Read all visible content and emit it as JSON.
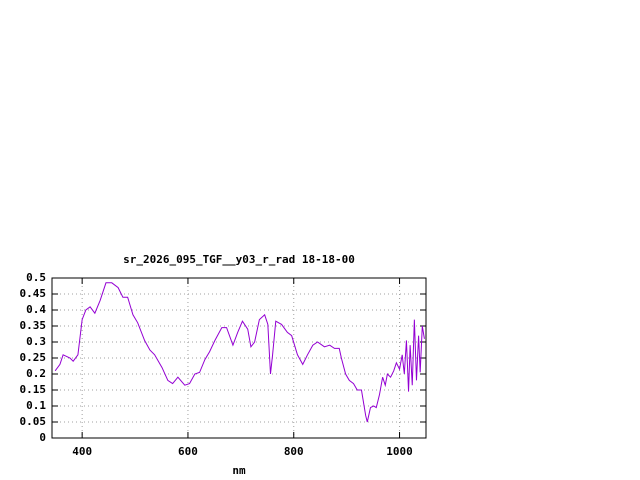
{
  "chart_data": {
    "type": "line",
    "title": "sr_2026_095_TGF__y03_r_rad 18-18-00",
    "xlabel": "nm",
    "x": [
      349,
      358,
      364,
      377,
      383,
      392,
      400,
      407,
      415,
      424,
      434,
      445,
      456,
      468,
      477,
      486,
      496,
      505,
      518,
      528,
      537,
      551,
      562,
      571,
      581,
      594,
      603,
      613,
      622,
      632,
      641,
      651,
      664,
      673,
      685,
      694,
      703,
      713,
      719,
      726,
      735,
      745,
      751,
      756,
      760,
      766,
      777,
      788,
      796,
      807,
      817,
      826,
      836,
      845,
      858,
      868,
      877,
      886,
      890,
      898,
      905,
      913,
      920,
      928,
      936,
      939,
      945,
      951,
      956,
      962,
      968,
      973,
      977,
      983,
      989,
      994,
      1000,
      1005,
      1009,
      1013,
      1017,
      1020,
      1024,
      1028,
      1032,
      1036,
      1039,
      1043,
      1047
    ],
    "series": [
      {
        "color": "#9400d3",
        "values": [
          0.21,
          0.23,
          0.26,
          0.25,
          0.24,
          0.26,
          0.37,
          0.4,
          0.41,
          0.39,
          0.43,
          0.485,
          0.485,
          0.47,
          0.44,
          0.44,
          0.385,
          0.36,
          0.305,
          0.275,
          0.26,
          0.22,
          0.18,
          0.17,
          0.19,
          0.165,
          0.17,
          0.2,
          0.205,
          0.245,
          0.27,
          0.305,
          0.345,
          0.345,
          0.29,
          0.33,
          0.365,
          0.34,
          0.285,
          0.3,
          0.37,
          0.385,
          0.355,
          0.2,
          0.26,
          0.365,
          0.355,
          0.33,
          0.32,
          0.26,
          0.23,
          0.26,
          0.29,
          0.3,
          0.285,
          0.29,
          0.28,
          0.28,
          0.25,
          0.2,
          0.18,
          0.17,
          0.15,
          0.15,
          0.07,
          0.05,
          0.095,
          0.1,
          0.095,
          0.135,
          0.19,
          0.165,
          0.2,
          0.19,
          0.21,
          0.235,
          0.215,
          0.26,
          0.2,
          0.305,
          0.145,
          0.29,
          0.165,
          0.37,
          0.18,
          0.32,
          0.205,
          0.35,
          0.31
        ]
      }
    ],
    "xlim": [
      343,
      1050
    ],
    "xticks": [
      400,
      600,
      800,
      1000
    ],
    "ylim": [
      0,
      0.5
    ],
    "yticks": [
      0,
      0.05,
      0.1,
      0.15,
      0.2,
      0.25,
      0.3,
      0.35,
      0.4,
      0.45,
      0.5
    ],
    "grid": true
  }
}
